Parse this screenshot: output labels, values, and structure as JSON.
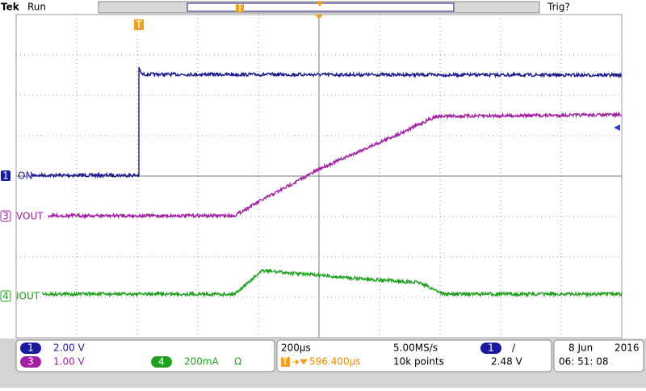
{
  "header": {
    "brand": "Tek",
    "status": "Run",
    "trigger_status": "Trig?",
    "trigger_marker": "T"
  },
  "channels": [
    {
      "number": "1",
      "label": "ON",
      "scale": "2.00 V"
    },
    {
      "number": "3",
      "label": "VOUT",
      "scale": "1.00 V"
    },
    {
      "number": "4",
      "label": "IOUT",
      "scale": "200mA",
      "unit_icon": "Ω"
    }
  ],
  "timebase": {
    "scale": "200µs",
    "sample_rate": "5.00MS/s",
    "trigger_delay": "596.400µs",
    "record_length": "10k points"
  },
  "trigger": {
    "source": "1",
    "slope": "/",
    "level": "2.48 V"
  },
  "clock": {
    "date": "8 Jun",
    "year": "2016",
    "time": "06: 51: 08"
  }
}
